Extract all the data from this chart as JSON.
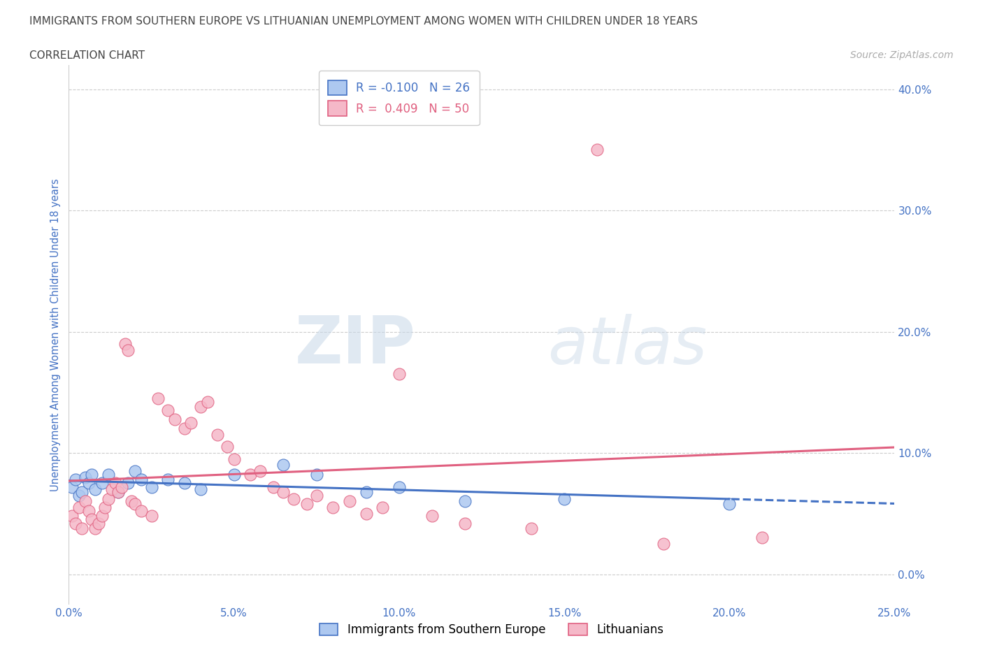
{
  "title": "IMMIGRANTS FROM SOUTHERN EUROPE VS LITHUANIAN UNEMPLOYMENT AMONG WOMEN WITH CHILDREN UNDER 18 YEARS",
  "subtitle": "CORRELATION CHART",
  "source": "Source: ZipAtlas.com",
  "ylabel": "Unemployment Among Women with Children Under 18 years",
  "xlim": [
    0.0,
    0.25
  ],
  "ylim": [
    -0.025,
    0.42
  ],
  "yticks": [
    0.0,
    0.1,
    0.2,
    0.3,
    0.4
  ],
  "xticks": [
    0.0,
    0.05,
    0.1,
    0.15,
    0.2,
    0.25
  ],
  "blue": {
    "name": "Immigrants from Southern Europe",
    "R": -0.1,
    "N": 26,
    "color_fill": "#adc8f0",
    "color_edge": "#4472c4",
    "x": [
      0.001,
      0.002,
      0.003,
      0.004,
      0.005,
      0.006,
      0.007,
      0.008,
      0.01,
      0.012,
      0.015,
      0.018,
      0.02,
      0.022,
      0.025,
      0.03,
      0.035,
      0.04,
      0.05,
      0.065,
      0.075,
      0.09,
      0.1,
      0.12,
      0.15,
      0.2
    ],
    "y": [
      0.072,
      0.078,
      0.065,
      0.068,
      0.08,
      0.075,
      0.082,
      0.07,
      0.075,
      0.082,
      0.068,
      0.075,
      0.085,
      0.078,
      0.072,
      0.078,
      0.075,
      0.07,
      0.082,
      0.09,
      0.082,
      0.068,
      0.072,
      0.06,
      0.062,
      0.058
    ]
  },
  "pink": {
    "name": "Lithuanians",
    "R": 0.409,
    "N": 50,
    "color_fill": "#f5b8c8",
    "color_edge": "#e06080",
    "x": [
      0.001,
      0.002,
      0.003,
      0.004,
      0.005,
      0.006,
      0.007,
      0.008,
      0.009,
      0.01,
      0.011,
      0.012,
      0.013,
      0.014,
      0.015,
      0.016,
      0.017,
      0.018,
      0.019,
      0.02,
      0.022,
      0.025,
      0.027,
      0.03,
      0.032,
      0.035,
      0.037,
      0.04,
      0.042,
      0.045,
      0.048,
      0.05,
      0.055,
      0.058,
      0.062,
      0.065,
      0.068,
      0.072,
      0.075,
      0.08,
      0.085,
      0.09,
      0.095,
      0.1,
      0.11,
      0.12,
      0.14,
      0.16,
      0.18,
      0.21
    ],
    "y": [
      0.048,
      0.042,
      0.055,
      0.038,
      0.06,
      0.052,
      0.045,
      0.038,
      0.042,
      0.048,
      0.055,
      0.062,
      0.07,
      0.075,
      0.068,
      0.072,
      0.19,
      0.185,
      0.06,
      0.058,
      0.052,
      0.048,
      0.145,
      0.135,
      0.128,
      0.12,
      0.125,
      0.138,
      0.142,
      0.115,
      0.105,
      0.095,
      0.082,
      0.085,
      0.072,
      0.068,
      0.062,
      0.058,
      0.065,
      0.055,
      0.06,
      0.05,
      0.055,
      0.165,
      0.048,
      0.042,
      0.038,
      0.35,
      0.025,
      0.03
    ]
  },
  "background_color": "#ffffff",
  "grid_color": "#cccccc",
  "watermark": "ZIPatlas",
  "title_color": "#444444",
  "axis_color": "#4472c4"
}
